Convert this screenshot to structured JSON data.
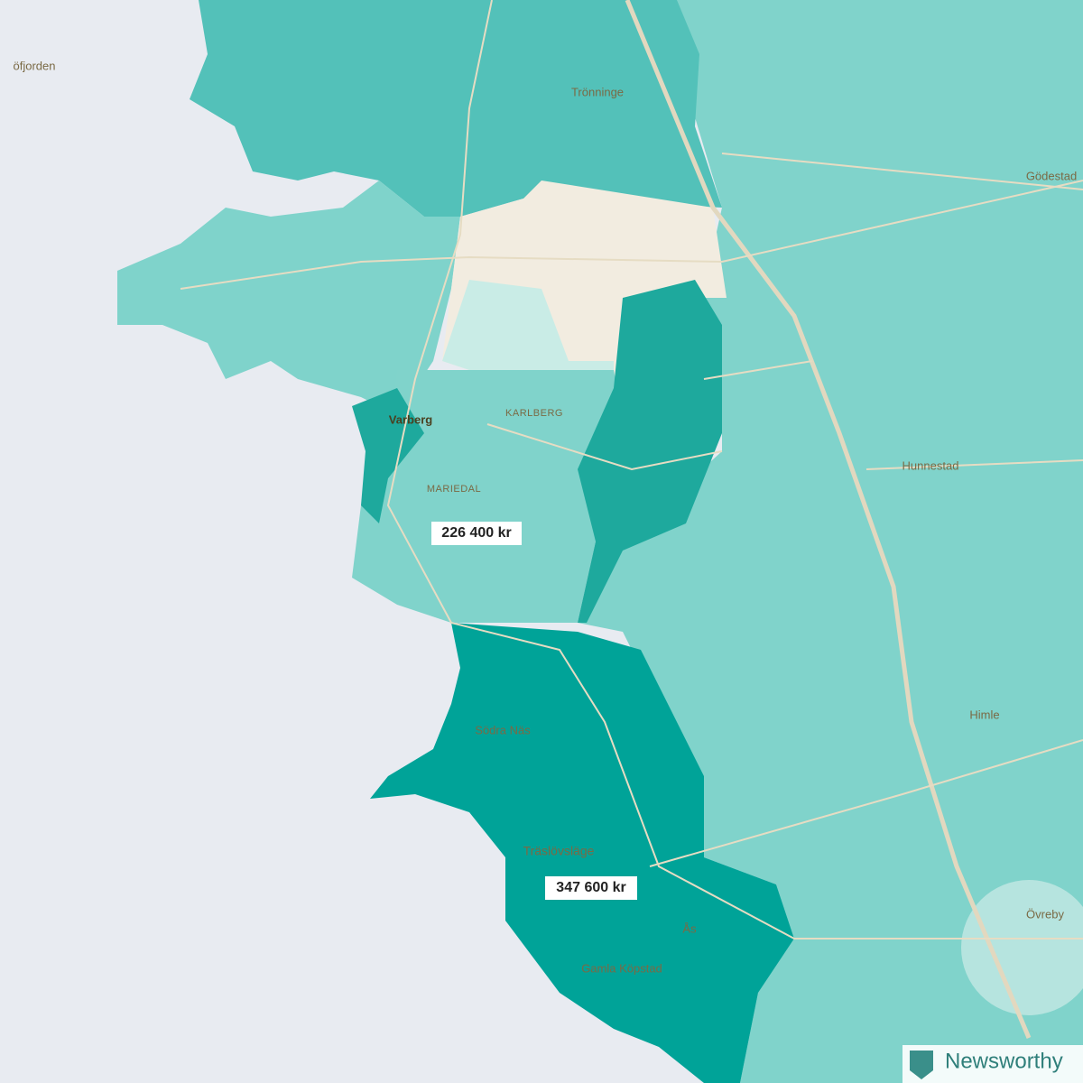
{
  "map": {
    "places": [
      "öfjorden",
      "Trönninge",
      "Gödestad",
      "Varberg",
      "KARLBERG",
      "MARIEDAL",
      "Hunnestad",
      "Himle",
      "Södra Näs",
      "Träslövsläge",
      "Ås",
      "Gamla Köpstad",
      "Övreby"
    ],
    "value_labels": [
      "226 400 kr",
      "347 600 kr"
    ],
    "brand": "Newsworthy"
  }
}
